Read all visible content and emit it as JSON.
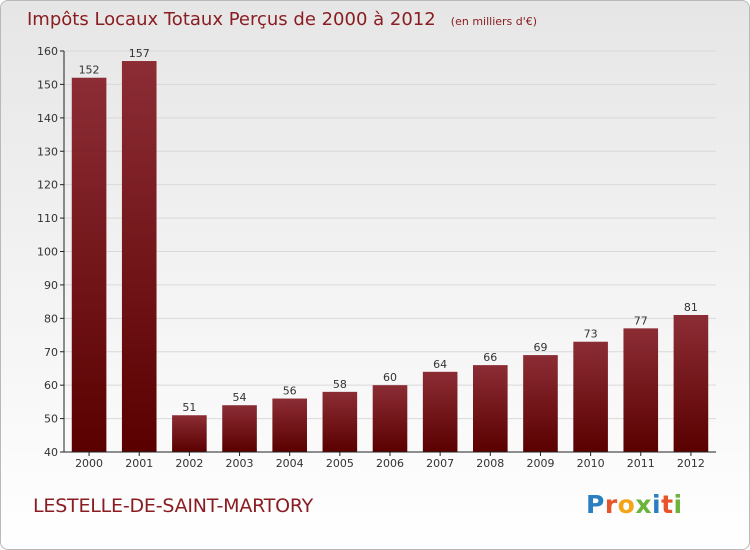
{
  "header": {
    "title": "Impôts Locaux Totaux Perçus de 2000 à 2012",
    "unit": "(en milliers d'€)"
  },
  "footer": {
    "commune": "LESTELLE-DE-SAINT-MARTORY"
  },
  "logo": {
    "text": "Proxiti",
    "letter_colors": [
      "#2a7fc1",
      "#e8542a",
      "#f2a516",
      "#6bb43a",
      "#2a7fc1",
      "#e8542a",
      "#6bb43a"
    ]
  },
  "colors": {
    "bar_top": "#8c2d35",
    "bar_bottom": "#5a0000",
    "title": "#8a1d22",
    "axis": "#222222",
    "grid": "#d9d9d9"
  },
  "chart_data": {
    "type": "bar",
    "title": "Impôts Locaux Totaux Perçus de 2000 à 2012",
    "subtitle": "(en milliers d'€)",
    "xlabel": "",
    "ylabel": "",
    "categories": [
      "2000",
      "2001",
      "2002",
      "2003",
      "2004",
      "2005",
      "2006",
      "2007",
      "2008",
      "2009",
      "2010",
      "2011",
      "2012"
    ],
    "values": [
      152,
      157,
      51,
      54,
      56,
      58,
      60,
      64,
      66,
      69,
      73,
      77,
      81
    ],
    "ylim": [
      40,
      160
    ],
    "yticks": [
      40,
      50,
      60,
      70,
      80,
      90,
      100,
      110,
      120,
      130,
      140,
      150,
      160
    ],
    "grid": true,
    "data_labels": true
  }
}
